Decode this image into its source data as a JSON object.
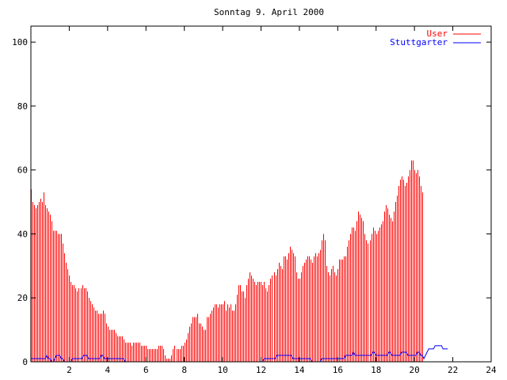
{
  "chart_data": {
    "type": "bar",
    "title": "Sonntag 9. April 2000",
    "xlim": [
      0,
      24
    ],
    "ylim": [
      0,
      105
    ],
    "x_ticks": [
      2,
      4,
      6,
      8,
      10,
      12,
      14,
      16,
      18,
      20,
      22,
      24
    ],
    "y_ticks": [
      0,
      20,
      40,
      60,
      80,
      100
    ],
    "x_tick_labels": [
      "2",
      "4",
      "6",
      "8",
      "10",
      "12",
      "14",
      "16",
      "18",
      "20",
      "22",
      "24"
    ],
    "y_tick_labels": [
      "0",
      "20",
      "40",
      "60",
      "80",
      "100"
    ],
    "grid": false,
    "legend_position": "top-right",
    "sample_interval_hours": 0.0833,
    "series": [
      {
        "name": "User",
        "style": "impulses",
        "color": "#ff0000",
        "values": [
          54,
          50,
          49,
          48,
          49,
          50,
          51,
          50,
          53,
          49,
          48,
          47,
          46,
          44,
          41,
          41,
          41,
          40,
          40,
          40,
          37,
          34,
          31,
          29,
          27,
          25,
          24,
          24,
          23,
          22,
          23,
          23,
          24,
          23,
          23,
          22,
          20,
          19,
          18,
          17,
          16,
          16,
          15,
          15,
          15,
          16,
          15,
          12,
          11,
          10,
          10,
          10,
          10,
          9,
          8,
          8,
          8,
          8,
          7,
          6,
          6,
          6,
          6,
          5,
          6,
          6,
          6,
          6,
          6,
          5,
          5,
          5,
          5,
          4,
          4,
          4,
          4,
          4,
          4,
          4,
          5,
          5,
          5,
          4,
          2,
          1,
          1,
          1,
          2,
          4,
          5,
          4,
          4,
          4,
          5,
          5,
          6,
          7,
          9,
          11,
          12,
          14,
          14,
          14,
          15,
          12,
          12,
          11,
          10,
          10,
          14,
          14,
          15,
          16,
          17,
          18,
          18,
          17,
          18,
          18,
          18,
          19,
          16,
          18,
          17,
          18,
          16,
          16,
          18,
          21,
          24,
          24,
          22,
          22,
          20,
          24,
          26,
          28,
          27,
          26,
          25,
          24,
          25,
          25,
          25,
          24,
          25,
          23,
          22,
          24,
          26,
          27,
          28,
          27,
          29,
          31,
          30,
          29,
          33,
          33,
          32,
          34,
          36,
          35,
          34,
          33,
          28,
          26,
          26,
          28,
          30,
          31,
          32,
          33,
          33,
          32,
          31,
          33,
          34,
          33,
          34,
          35,
          38,
          40,
          38,
          30,
          28,
          27,
          29,
          30,
          28,
          27,
          29,
          32,
          32,
          32,
          33,
          33,
          36,
          38,
          40,
          42,
          42,
          41,
          44,
          47,
          46,
          45,
          44,
          40,
          38,
          37,
          38,
          40,
          42,
          41,
          40,
          41,
          42,
          43,
          44,
          47,
          49,
          48,
          46,
          45,
          44,
          47,
          50,
          52,
          55,
          57,
          58,
          57,
          55,
          56,
          58,
          60,
          63,
          63,
          60,
          59,
          60,
          58,
          55,
          53
        ]
      },
      {
        "name": "Stuttgarter",
        "style": "lines",
        "color": "#0000ff",
        "values": [
          1,
          1,
          1,
          1,
          1,
          1,
          1,
          1,
          1,
          1,
          2,
          1,
          1,
          0,
          0,
          1,
          2,
          2,
          2,
          1,
          1,
          0,
          0,
          0,
          0,
          0,
          1,
          1,
          1,
          1,
          1,
          1,
          1,
          2,
          2,
          2,
          1,
          1,
          1,
          1,
          1,
          1,
          1,
          1,
          2,
          2,
          1,
          1,
          1,
          1,
          1,
          1,
          1,
          1,
          1,
          1,
          1,
          1,
          1,
          0,
          0,
          0,
          0,
          0,
          0,
          0,
          0,
          0,
          0,
          0,
          0,
          0,
          0,
          0,
          0,
          0,
          0,
          0,
          0,
          0,
          0,
          0,
          0,
          0,
          0,
          0,
          0,
          0,
          0,
          0,
          0,
          0,
          0,
          0,
          0,
          0,
          0,
          0,
          0,
          0,
          0,
          0,
          0,
          0,
          0,
          0,
          0,
          0,
          0,
          0,
          0,
          0,
          0,
          0,
          0,
          0,
          0,
          0,
          0,
          0,
          0,
          0,
          0,
          0,
          0,
          0,
          0,
          0,
          0,
          0,
          0,
          0,
          0,
          0,
          0,
          0,
          0,
          0,
          0,
          0,
          0,
          0,
          0,
          0,
          0,
          0,
          1,
          1,
          1,
          1,
          1,
          1,
          1,
          1,
          2,
          2,
          2,
          2,
          2,
          2,
          2,
          2,
          2,
          2,
          1,
          1,
          1,
          1,
          1,
          1,
          1,
          1,
          1,
          1,
          1,
          1,
          0,
          0,
          0,
          0,
          0,
          0,
          1,
          1,
          1,
          1,
          1,
          1,
          1,
          1,
          1,
          1,
          1,
          1,
          1,
          1,
          1,
          2,
          2,
          2,
          2,
          2,
          3,
          2,
          2,
          2,
          2,
          2,
          2,
          2,
          2,
          2,
          2,
          2,
          3,
          3,
          2,
          2,
          2,
          2,
          2,
          2,
          2,
          2,
          3,
          3,
          2,
          2,
          2,
          2,
          2,
          2,
          3,
          3,
          3,
          3,
          2,
          2,
          2,
          2,
          2,
          2,
          3,
          3,
          2,
          2,
          1,
          2,
          3,
          4,
          4,
          4,
          4,
          5,
          5,
          5,
          5,
          5,
          4,
          4,
          4,
          4
        ]
      }
    ]
  }
}
